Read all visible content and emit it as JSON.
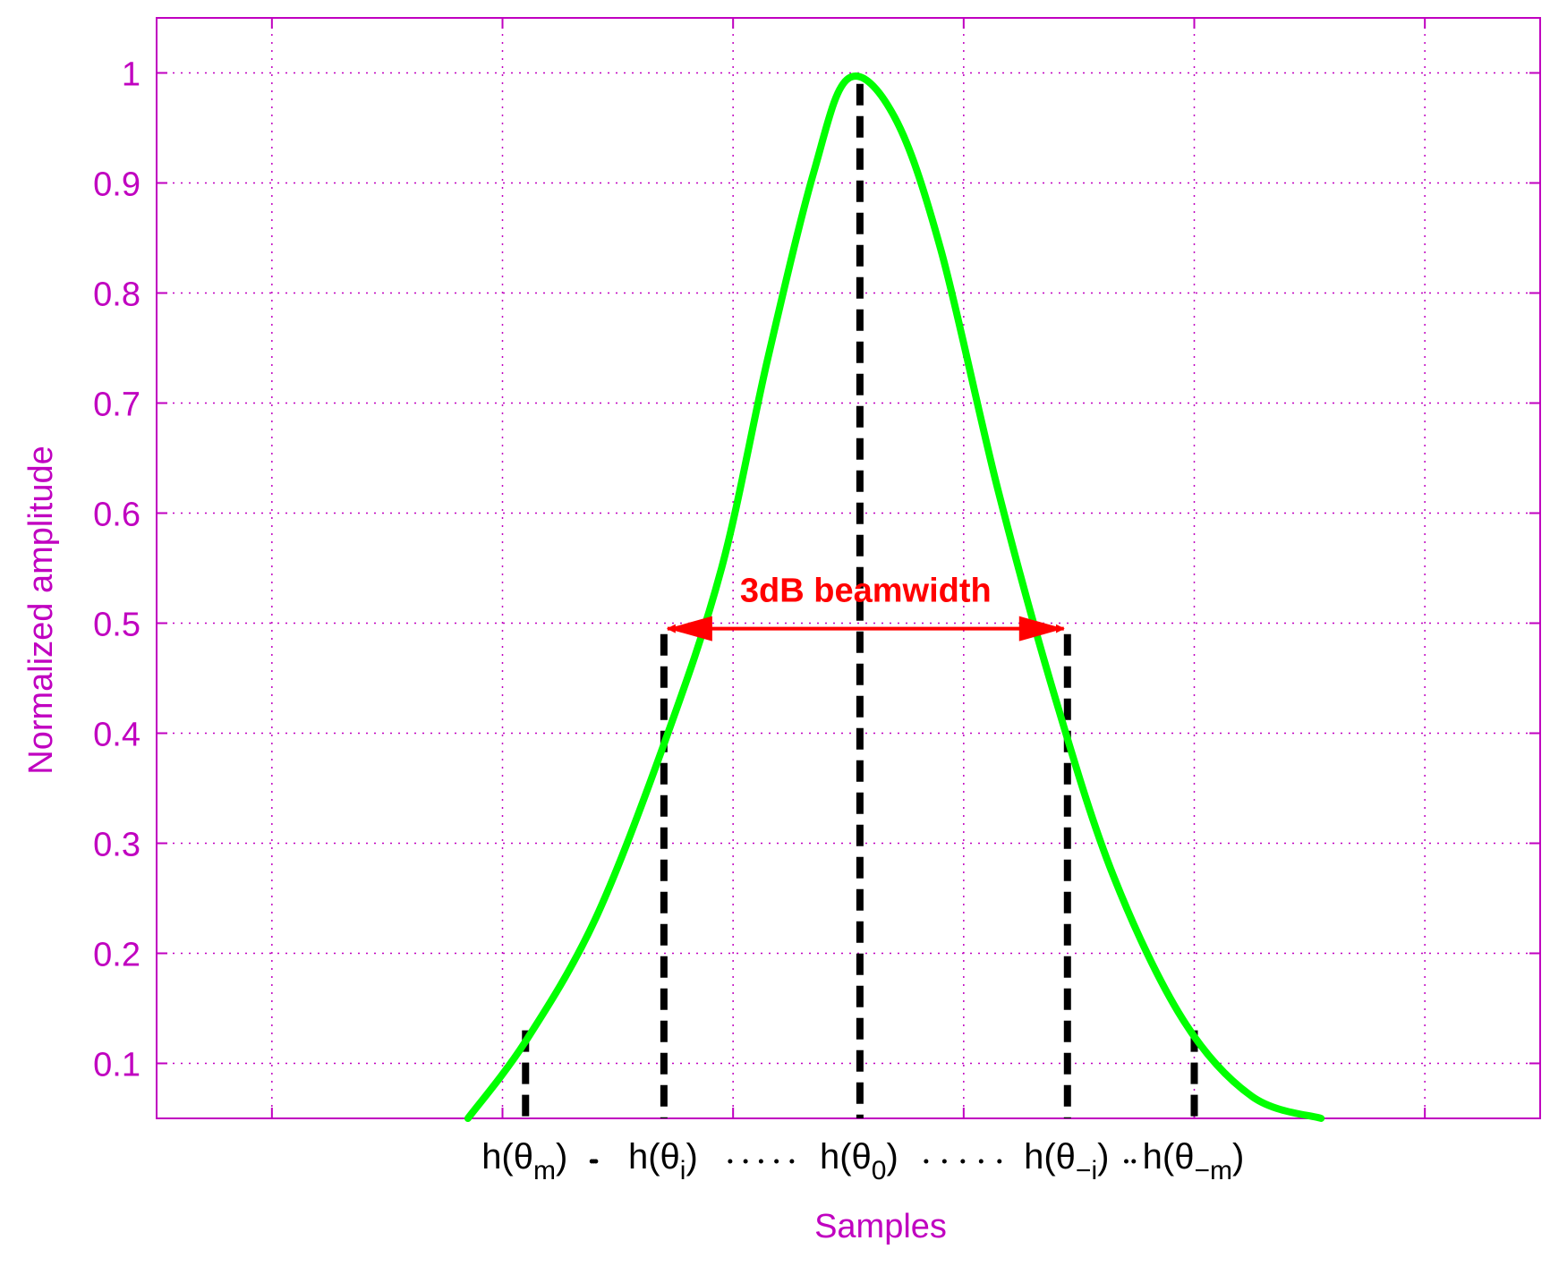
{
  "chart_data": {
    "type": "line",
    "xlabel": "Samples",
    "ylabel": "Normalized amplitude",
    "ylim": [
      0.05,
      1.05
    ],
    "xlim": [
      0,
      6
    ],
    "grid": true,
    "yticks": [
      "0.1",
      "0.2",
      "0.3",
      "0.4",
      "0.5",
      "0.6",
      "0.7",
      "0.8",
      "0.9",
      "1"
    ],
    "ytick_values": [
      0.1,
      0.2,
      0.3,
      0.4,
      0.5,
      0.6,
      0.7,
      0.8,
      0.9,
      1.0
    ],
    "x_gridlines": [
      0.5,
      1.5,
      2.5,
      3.5,
      4.5,
      5.5
    ],
    "series": [
      {
        "x": [
          1.35,
          1.6,
          1.9,
          2.2,
          2.45,
          2.65,
          2.85,
          3.0,
          3.2,
          3.4,
          3.65,
          3.9,
          4.15,
          4.45,
          4.75,
          5.05
        ],
        "y": [
          0.05,
          0.12,
          0.23,
          0.39,
          0.55,
          0.74,
          0.91,
          0.995,
          0.96,
          0.84,
          0.62,
          0.43,
          0.27,
          0.14,
          0.07,
          0.05
        ]
      }
    ],
    "samples": [
      {
        "label_main": "h(θ",
        "label_sub": "m",
        "x": 1.6,
        "y": 0.13
      },
      {
        "label_main": "h(θ",
        "label_sub": "i",
        "x": 2.2,
        "y": 0.49
      },
      {
        "label_main": "h(θ",
        "label_sub": "0",
        "x": 3.05,
        "y": 0.99
      },
      {
        "label_main": "h(θ",
        "label_sub": "−i",
        "x": 3.95,
        "y": 0.49
      },
      {
        "label_main": "h(θ",
        "label_sub": "−m",
        "x": 4.5,
        "y": 0.13
      }
    ],
    "annotation": {
      "text": "3dB beamwidth",
      "y": 0.495,
      "x_start": 2.2,
      "x_end": 3.95
    },
    "colors": {
      "axis": "#c000c0",
      "grid": "#c000c0",
      "curve": "#00ff00",
      "samples": "#000000",
      "annotation": "#ff0000"
    }
  }
}
